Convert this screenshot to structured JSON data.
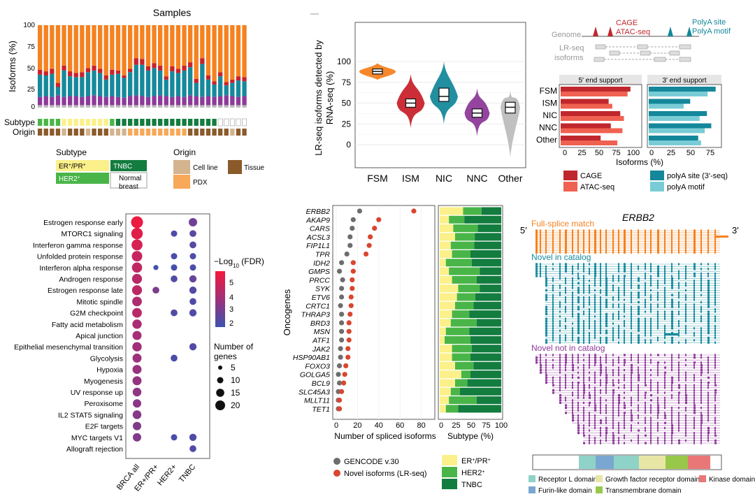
{
  "colors": {
    "fsm": "#f58220",
    "ism": "#c8232c",
    "nic": "#16899c",
    "nnc": "#8e3a9a",
    "other": "#bdbdbd",
    "erpr": "#fbf08a",
    "her2": "#49b548",
    "tnbc": "#137c3f",
    "normal": "#ffffff",
    "cellline": "#d3b48f",
    "pdx": "#f7a858",
    "tissue": "#8b5a2b",
    "cage": "#c0272d",
    "atac": "#ef6150",
    "polya": "#14879a",
    "motif": "#79ccd6",
    "gencode": "#6d6d6d",
    "novel": "#d9462f"
  },
  "panelA": {
    "title": "Samples",
    "ylabel": "Isoforms (%)",
    "yticks": [
      "100",
      "75",
      "50",
      "25",
      "0"
    ],
    "subtype_label": "Subtype",
    "origin_label": "Origin",
    "legend": {
      "subtype_title": "Subtype",
      "erpr_base": "ER",
      "erpr_sup1": "+",
      "erpr_mid": "/PR",
      "erpr_sup2": "+",
      "her2_base": "HER2",
      "her2_sup": "+",
      "tnbc": "TNBC",
      "normal_line1": "Normal",
      "normal_line2": "breast",
      "origin_title": "Origin",
      "cellline": "Cell line",
      "pdx": "PDX",
      "tissue": "Tissue"
    }
  },
  "panelA_chart": {
    "type": "bar",
    "title": "Samples",
    "ylabel": "Isoforms (%)",
    "ylim": [
      0,
      100
    ],
    "series_order": [
      "FSM",
      "ISM",
      "NIC",
      "NNC",
      "Other"
    ],
    "nnc": [
      10,
      11,
      10,
      12,
      10,
      11,
      11,
      10,
      11,
      12,
      11,
      10,
      11,
      10,
      9,
      11,
      12,
      11,
      10,
      11,
      12,
      11,
      10,
      11,
      10,
      12,
      11,
      10,
      11,
      10,
      11,
      12,
      11,
      10,
      11
    ],
    "nic": [
      27,
      25,
      28,
      10,
      32,
      24,
      23,
      24,
      29,
      30,
      28,
      21,
      26,
      28,
      24,
      29,
      37,
      38,
      32,
      34,
      30,
      20,
      31,
      28,
      32,
      34,
      16,
      40,
      20,
      15,
      24,
      12,
      16,
      20,
      18
    ],
    "ism": [
      6,
      5,
      6,
      5,
      6,
      6,
      5,
      6,
      5,
      6,
      5,
      5,
      6,
      4,
      3,
      4,
      8,
      7,
      5,
      6,
      6,
      4,
      6,
      5,
      6,
      6,
      5,
      7,
      5,
      4,
      5,
      4,
      4,
      5,
      5
    ],
    "subtype": [
      "her2",
      "her2",
      "her2",
      "her2",
      "erpr",
      "erpr",
      "erpr",
      "erpr",
      "erpr",
      "erpr",
      "erpr",
      "erpr",
      "her2",
      "tnbc",
      "tnbc",
      "tnbc",
      "tnbc",
      "tnbc",
      "tnbc",
      "tnbc",
      "tnbc",
      "tnbc",
      "tnbc",
      "tnbc",
      "tnbc",
      "tnbc",
      "tnbc",
      "tnbc",
      "tnbc",
      "tnbc",
      "normal",
      "normal",
      "normal",
      "normal",
      "normal"
    ],
    "origin": [
      "tissue",
      "tissue",
      "tissue",
      "tissue",
      "cellline",
      "tissue",
      "tissue",
      "tissue",
      "cellline",
      "tissue",
      "tissue",
      "tissue",
      "cellline",
      "cellline",
      "cellline",
      "pdx",
      "pdx",
      "pdx",
      "pdx",
      "pdx",
      "pdx",
      "pdx",
      "pdx",
      "pdx",
      "pdx",
      "tissue",
      "tissue",
      "tissue",
      "tissue",
      "tissue",
      "tissue",
      "tissue",
      "cellline",
      "tissue",
      "tissue"
    ]
  },
  "panelB_chart": {
    "type": "violin",
    "ylabel_line1": "LR-seq isoforms detected by",
    "ylabel_line2": "RNA-seq (%)",
    "ylim": [
      -15,
      105
    ],
    "yticks": [
      0,
      25,
      50,
      75,
      100
    ],
    "categories": [
      "FSM",
      "ISM",
      "NIC",
      "NNC",
      "Other"
    ],
    "medians": [
      88,
      50,
      58,
      38,
      45
    ],
    "q1": [
      85,
      45,
      52,
      33,
      38
    ],
    "q3": [
      91,
      55,
      68,
      43,
      51
    ],
    "min": [
      78,
      20,
      25,
      10,
      -15
    ],
    "max": [
      98,
      85,
      100,
      68,
      65
    ]
  },
  "panelC": {
    "genome": "Genome",
    "lrseq_line1": "LR-seq",
    "lrseq_line2": "isoforms",
    "cage": "CAGE",
    "atac": "ATAC-seq",
    "polya_site": "PolyA site",
    "polya_motif": "PolyA motif",
    "title5": "5′ end support",
    "title3": "3′ end support",
    "xlabel": "Isoforms (%)",
    "xticks5": [
      "0",
      "25",
      "50",
      "75",
      "100"
    ],
    "xticks3": [
      "0",
      "25",
      "50",
      "75"
    ],
    "legend": {
      "cage": "CAGE",
      "atac": "ATAC-seq",
      "polya": "polyA site (3′-seq)",
      "motif": "polyA motif"
    }
  },
  "panelC_chart": {
    "type": "bar",
    "orientation": "horizontal",
    "categories": [
      "FSM",
      "ISM",
      "NIC",
      "NNC",
      "Other"
    ],
    "series": [
      {
        "name": "CAGE",
        "values": [
          96,
          66,
          82,
          69,
          55
        ]
      },
      {
        "name": "ATAC-seq",
        "values": [
          92,
          71,
          87,
          85,
          78
        ]
      },
      {
        "name": "polyA site (3′-seq)",
        "values": [
          92,
          57,
          80,
          86,
          68
        ]
      },
      {
        "name": "polyA motif",
        "values": [
          81,
          48,
          70,
          77,
          72
        ]
      }
    ]
  },
  "panelD": {
    "legend_title_prefix": "−Log",
    "legend_title_sub": "10",
    "legend_title_suffix": " (FDR)",
    "color_ticks": [
      "5",
      "4",
      "3",
      "2"
    ],
    "size_title_line1": "Number of",
    "size_title_line2": "genes",
    "size_ticks": [
      "5",
      "10",
      "15",
      "20"
    ]
  },
  "panelD_chart": {
    "type": "dotplot",
    "pathways": [
      "Estrogen response early",
      "MTORC1 signaling",
      "Interferon gamma response",
      "Unfolded protein response",
      "Interferon alpha response",
      "Androgen response",
      "Estrogen response late",
      "Mitotic spindle",
      "G2M checkpoint",
      "Fatty acid metabolism",
      "Apical junction",
      "Epithelial mesenchymal transition",
      "Glycolysis",
      "Hypoxia",
      "Myogenesis",
      "UV response up",
      "Peroxisome",
      "IL2 STAT5 signaling",
      "E2F targets",
      "MYC targets V1",
      "Allograft rejection"
    ],
    "columns": [
      "BRCA all",
      "ER+/PR+",
      "HER2+",
      "TNBC"
    ],
    "points": [
      [
        0,
        0,
        22,
        5.6
      ],
      [
        0,
        3,
        9,
        2.6
      ],
      [
        1,
        0,
        20,
        5.3
      ],
      [
        1,
        2,
        4,
        1.9
      ],
      [
        1,
        3,
        5,
        2.2
      ],
      [
        2,
        0,
        18,
        5.0
      ],
      [
        2,
        3,
        5,
        2.1
      ],
      [
        3,
        0,
        16,
        4.6
      ],
      [
        3,
        2,
        4,
        1.8
      ],
      [
        3,
        3,
        4,
        1.9
      ],
      [
        4,
        0,
        15,
        4.5
      ],
      [
        4,
        1,
        2,
        1.6
      ],
      [
        4,
        2,
        4,
        1.7
      ],
      [
        4,
        3,
        4,
        1.8
      ],
      [
        5,
        0,
        14,
        4.3
      ],
      [
        5,
        2,
        5,
        2.0
      ],
      [
        5,
        3,
        6,
        2.4
      ],
      [
        6,
        0,
        14,
        4.4
      ],
      [
        6,
        1,
        5,
        2.9
      ],
      [
        6,
        3,
        6,
        2.0
      ],
      [
        7,
        0,
        13,
        4.0
      ],
      [
        7,
        3,
        5,
        1.9
      ],
      [
        8,
        0,
        13,
        4.3
      ],
      [
        8,
        2,
        5,
        2.0
      ],
      [
        8,
        3,
        6,
        1.9
      ],
      [
        9,
        0,
        12,
        3.9
      ],
      [
        10,
        0,
        11,
        3.8
      ],
      [
        11,
        0,
        12,
        3.7
      ],
      [
        11,
        3,
        6,
        2.0
      ],
      [
        12,
        0,
        11,
        3.6
      ],
      [
        12,
        2,
        5,
        1.8
      ],
      [
        13,
        0,
        11,
        3.5
      ],
      [
        14,
        0,
        11,
        3.4
      ],
      [
        15,
        0,
        10,
        3.3
      ],
      [
        16,
        0,
        9,
        3.2
      ],
      [
        17,
        0,
        10,
        3.1
      ],
      [
        18,
        0,
        9,
        3.0
      ],
      [
        19,
        0,
        9,
        3.0
      ],
      [
        19,
        2,
        4,
        1.8
      ],
      [
        19,
        3,
        6,
        1.9
      ],
      [
        20,
        3,
        5,
        1.9
      ]
    ]
  },
  "panelE": {
    "ylabel": "Oncogenes",
    "xlabel1": "Number of spliced isoforms",
    "xlabel2": "Subtype (%)",
    "xticks1": [
      "0",
      "20",
      "40",
      "60",
      "80"
    ],
    "xticks2": [
      "0",
      "25",
      "50",
      "75",
      "100"
    ],
    "legend": {
      "gencode": "GENCODE v.30",
      "novel": "Novel isoforms (LR-seq)",
      "erpr_base": "ER",
      "erpr_sup1": "+",
      "erpr_mid": "/PR",
      "erpr_sup2": "+",
      "her2_base": "HER2",
      "her2_sup": "+",
      "tnbc": "TNBC"
    }
  },
  "panelE_chart": {
    "type": "dot+stacked-bar",
    "genes": [
      "ERBB2",
      "AKAP9",
      "CARS",
      "ACSL3",
      "FIP1L1",
      "TPR",
      "IDH2",
      "GMPS",
      "PRCC",
      "SYK",
      "ETV6",
      "CRTC1",
      "THRAP3",
      "BRD3",
      "MSN",
      "ATF1",
      "JAK2",
      "HSP90AB1",
      "FOXO3",
      "GOLGA5",
      "BCL9",
      "SLC45A3",
      "MLLT11",
      "TET1"
    ],
    "gencode": [
      22,
      16,
      15,
      13,
      13,
      10,
      5,
      3,
      6,
      5,
      5,
      4,
      5,
      5,
      5,
      5,
      4,
      4,
      3,
      2,
      3,
      2,
      2,
      2
    ],
    "novel": [
      73,
      40,
      36,
      32,
      31,
      28,
      16,
      16,
      15,
      15,
      14,
      14,
      13,
      12,
      12,
      12,
      11,
      11,
      9,
      8,
      7,
      5,
      3,
      3
    ],
    "subtype_erpr": [
      38,
      15,
      22,
      25,
      18,
      20,
      10,
      15,
      20,
      30,
      28,
      25,
      20,
      18,
      10,
      8,
      20,
      20,
      25,
      35,
      25,
      18,
      15,
      10
    ],
    "subtype_her2": [
      30,
      25,
      40,
      32,
      38,
      30,
      42,
      50,
      40,
      35,
      30,
      30,
      28,
      42,
      38,
      42,
      32,
      30,
      30,
      15,
      20,
      15,
      45,
      20
    ],
    "subtype_tnbc": [
      32,
      60,
      38,
      43,
      44,
      50,
      48,
      35,
      40,
      35,
      42,
      45,
      52,
      40,
      52,
      50,
      48,
      50,
      45,
      50,
      55,
      67,
      40,
      70
    ]
  },
  "panelF": {
    "gene": "ERBB2",
    "five": "5′",
    "three": "3′",
    "full": "Full-splice match",
    "nic": "Novel in catalog",
    "nnc": "Novel not in catalog",
    "legend": {
      "receptor": "Receptor L domain",
      "furin": "Furin-like domain",
      "growth": "Growth factor receptor domain",
      "tm": "Transmembrane domain",
      "kinase": "Kinase domain"
    },
    "domain_colors": {
      "receptor": "#8fd3c8",
      "furin": "#7aa7d1",
      "growth": "#e8e6a5",
      "tm": "#98c84a",
      "kinase": "#ea7777"
    }
  }
}
